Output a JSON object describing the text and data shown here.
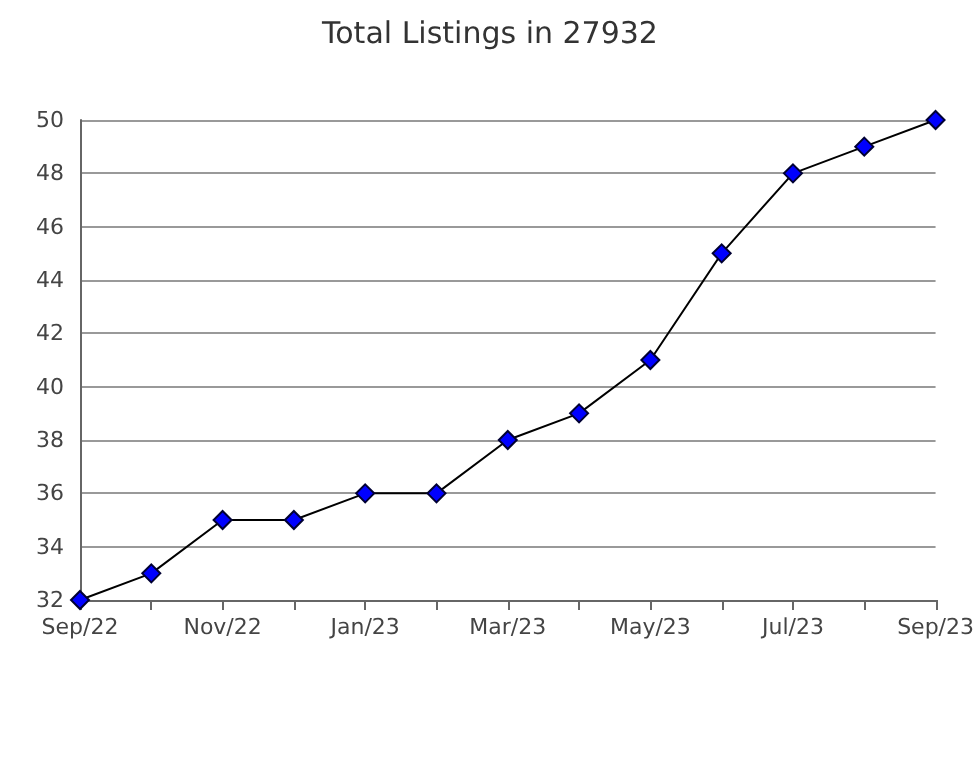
{
  "chart_data": {
    "type": "line",
    "title": "Total Listings in 27932",
    "categories": [
      "Sep/22",
      null,
      "Nov/22",
      null,
      "Jan/23",
      null,
      "Mar/23",
      null,
      "May/23",
      null,
      "Jul/23",
      null,
      "Sep/23"
    ],
    "series": [
      {
        "color": "#0000ff",
        "values": [
          32,
          33,
          35,
          35,
          36,
          36,
          38,
          39,
          41,
          45,
          48,
          49,
          50
        ]
      }
    ],
    "ylim": [
      32,
      50
    ],
    "yticks": [
      32,
      34,
      36,
      38,
      40,
      42,
      44,
      46,
      48,
      50
    ],
    "grid": "y",
    "marker": "diamond",
    "line_style": "solid"
  }
}
